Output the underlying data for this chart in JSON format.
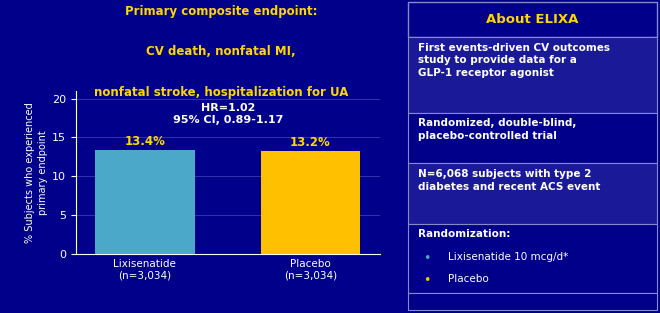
{
  "bg_color": "#00008B",
  "title_line1": "Primary composite endpoint:",
  "title_line2": "CV death, nonfatal MI,",
  "title_line3": "nonfatal stroke, hospitalization for UA",
  "title_color": "#FFD700",
  "hr_text": "HR=1.02",
  "ci_text": "95% CI, 0.89-1.17",
  "hr_color": "#FFFFFF",
  "bars": [
    {
      "label": "Lixisenatide\n(n=3,034)",
      "value": 13.4,
      "color": "#4BA8C8"
    },
    {
      "label": "Placebo\n(n=3,034)",
      "value": 13.2,
      "color": "#FFC000"
    }
  ],
  "bar_label_color": "#FFD700",
  "ylabel": "% Subjects who experienced\nprimary endpoint",
  "ylabel_color": "#FFFFFF",
  "yticks": [
    0,
    5,
    10,
    15,
    20
  ],
  "ylim": [
    0,
    21
  ],
  "tick_color": "#FFFFFF",
  "axis_color": "#FFFFFF",
  "grid_color": "#3333AA",
  "plot_bg": "#00008B",
  "right_panel_title": "About ELIXA",
  "right_panel_title_color": "#FFD700",
  "right_panel_bg": "#00008B",
  "right_panel_border_color": "#8888CC",
  "right_items": [
    {
      "text": "First events-driven CV outcomes\nstudy to provide data for a\nGLP-1 receptor agonist",
      "alt_bg": true
    },
    {
      "text": "Randomized, double-blind,\nplacebo-controlled trial",
      "alt_bg": false
    },
    {
      "text": "N=6,068 subjects with type 2\ndiabetes and recent ACS event",
      "alt_bg": true
    },
    {
      "text": "Randomization:",
      "alt_bg": false,
      "bullets": [
        {
          "text": "Lixisenatide 10 mcg/d*",
          "color": "#FFC000"
        },
        {
          "text": "Placebo",
          "color": "#FFC000"
        }
      ]
    }
  ],
  "right_item_text_color": "#FFFFFF",
  "right_item_bg1": "#1A1A99",
  "right_item_bg2": "#00008B",
  "bullet_color1": "#4BA8C8",
  "bullet_color2": "#FFC000"
}
